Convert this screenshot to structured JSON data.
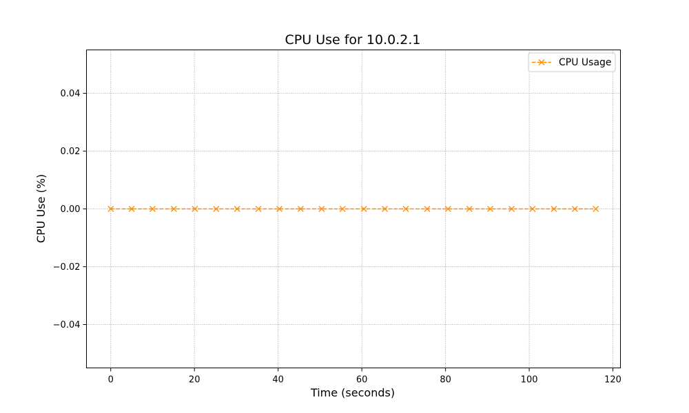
{
  "chart_data": {
    "type": "line",
    "title": "CPU Use for 10.0.2.1",
    "xlabel": "Time (seconds)",
    "ylabel": "CPU Use (%)",
    "xlim": [
      -5.8,
      121.8
    ],
    "ylim": [
      -0.055,
      0.055
    ],
    "xticks": [
      0,
      20,
      40,
      60,
      80,
      100,
      120
    ],
    "xtick_labels": [
      "0",
      "20",
      "40",
      "60",
      "80",
      "100",
      "120"
    ],
    "yticks": [
      -0.04,
      -0.02,
      0.0,
      0.02,
      0.04
    ],
    "ytick_labels": [
      "−0.04",
      "−0.02",
      "0.00",
      "0.02",
      "0.04"
    ],
    "grid": true,
    "legend_position": "top-right",
    "series": [
      {
        "name": "CPU Usage",
        "color": "#ff8c00",
        "line_style": "dashed",
        "marker": "x",
        "x": [
          0,
          5.0,
          10.0,
          15.1,
          20.1,
          25.2,
          30.2,
          35.3,
          40.3,
          45.4,
          50.4,
          55.4,
          60.5,
          65.5,
          70.5,
          75.6,
          80.6,
          85.7,
          90.7,
          95.8,
          100.8,
          105.9,
          110.9,
          115.9
        ],
        "y": [
          0,
          0,
          0,
          0,
          0,
          0,
          0,
          0,
          0,
          0,
          0,
          0,
          0,
          0,
          0,
          0,
          0,
          0,
          0,
          0,
          0,
          0,
          0,
          0
        ]
      }
    ]
  }
}
